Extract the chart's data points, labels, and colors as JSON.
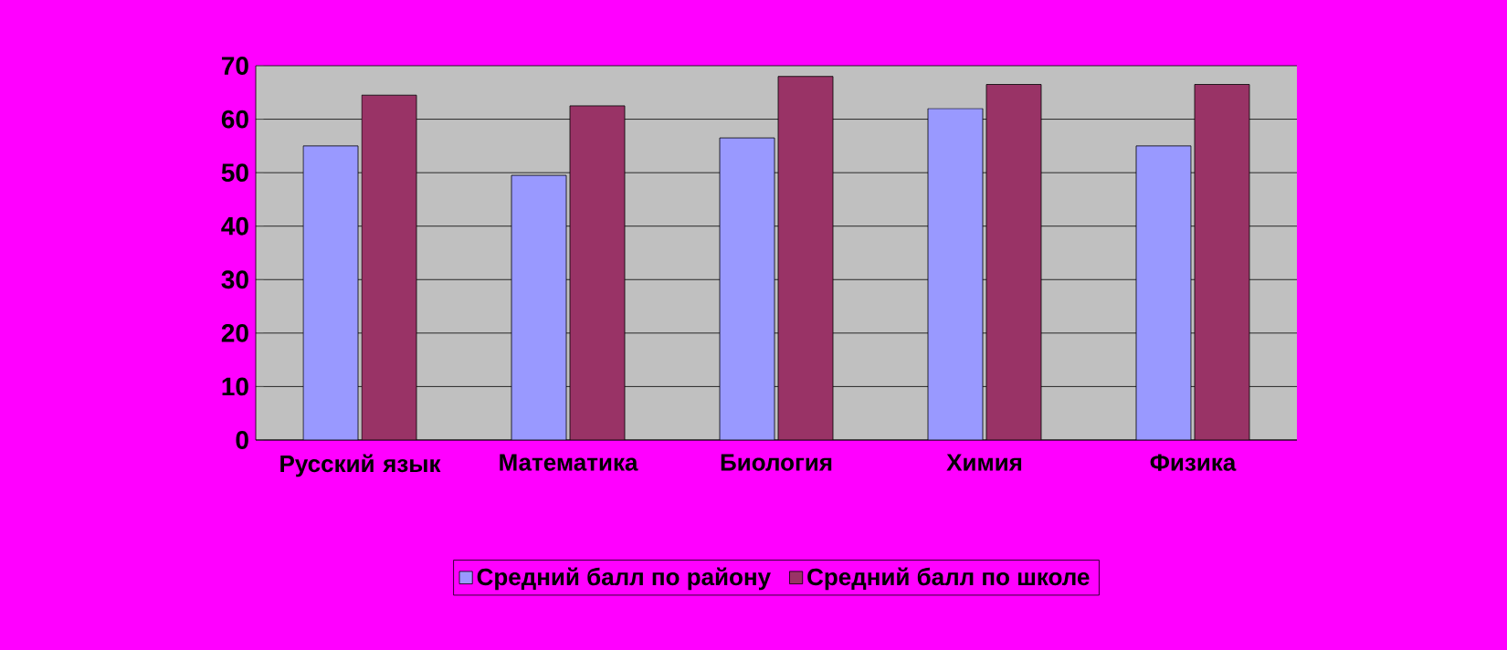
{
  "chart_data": {
    "type": "bar",
    "categories": [
      "Русский язык",
      "Математика",
      "Биология",
      "Химия",
      "Физика"
    ],
    "series": [
      {
        "name": "Средний балл по району",
        "color": "#9999ff",
        "values": [
          55,
          49.5,
          56.5,
          62,
          55
        ]
      },
      {
        "name": "Средний балл по школе",
        "color": "#993366",
        "values": [
          64.5,
          62.5,
          68,
          66.5,
          66.5
        ]
      }
    ],
    "ylim": [
      0,
      70
    ],
    "yticks": [
      0,
      10,
      20,
      30,
      40,
      50,
      60,
      70
    ],
    "grid": "y",
    "legend": "bottom"
  }
}
